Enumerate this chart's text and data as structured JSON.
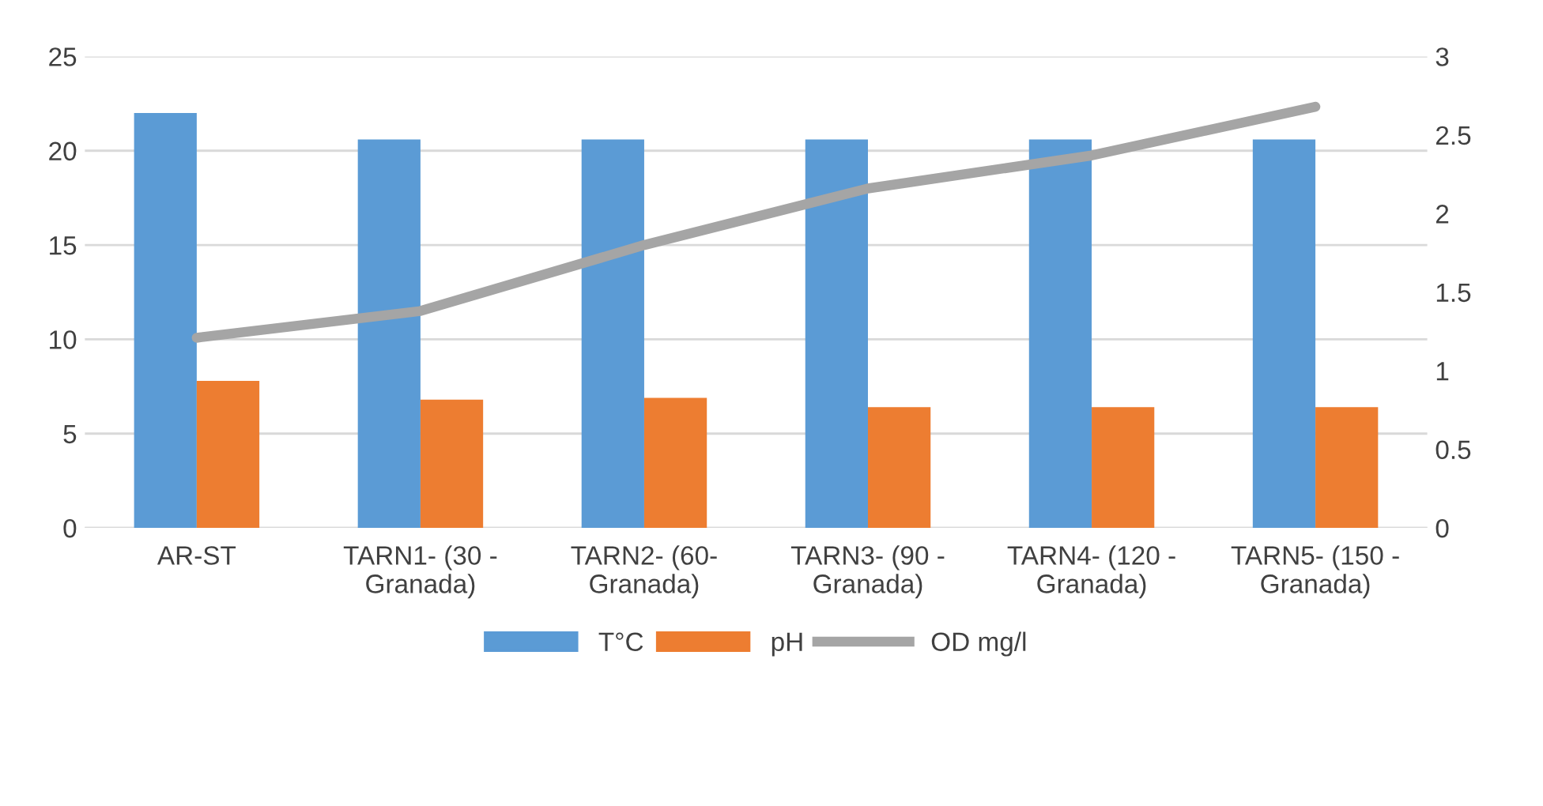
{
  "chart_data": {
    "type": "bar",
    "categories": [
      "AR-ST",
      "TARN1- (30 -\nGranada)",
      "TARN2- (60-\nGranada)",
      "TARN3- (90 -\nGranada)",
      "TARN4- (120 -\nGranada)",
      "TARN5- (150 -\nGranada)"
    ],
    "series": [
      {
        "name": "T°C",
        "color": "#5b9bd5",
        "values": [
          22,
          20.6,
          20.6,
          20.6,
          20.6,
          20.6
        ]
      },
      {
        "name": "pH",
        "color": "#ed7d31",
        "values": [
          7.8,
          6.8,
          6.9,
          6.4,
          6.4,
          6.4
        ]
      },
      {
        "name": "OD mg/l",
        "type": "line",
        "axis": "y2",
        "color": "#a5a5a5",
        "values": [
          1.21,
          1.38,
          1.8,
          2.16,
          2.37,
          2.68
        ]
      }
    ],
    "ylim": [
      0,
      25
    ],
    "yticks": [
      0,
      5,
      10,
      15,
      20,
      25
    ],
    "y2lim": [
      0,
      3
    ],
    "y2ticks": [
      0,
      0.5,
      1,
      1.5,
      2,
      2.5,
      3
    ],
    "grid": "y",
    "legend": "bottom",
    "marker": "none",
    "line_style": "solid"
  }
}
